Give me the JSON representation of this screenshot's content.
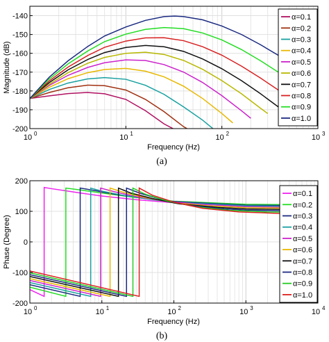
{
  "chart_data": [
    {
      "type": "line",
      "caption": "(a)",
      "xlabel": "Frequency (Hz)",
      "ylabel": "Magnitude (dB)",
      "xscale": "log",
      "xlim": [
        1,
        1000
      ],
      "ylim": [
        -200,
        -135
      ],
      "grid": true,
      "legend_position": "right",
      "x_ticks": [
        {
          "value": 1,
          "exp": "0"
        },
        {
          "value": 10,
          "exp": "1"
        },
        {
          "value": 100,
          "exp": "2"
        },
        {
          "value": 1000,
          "exp": "3"
        }
      ],
      "y_ticks": [
        -140,
        -150,
        -160,
        -170,
        -180,
        -190,
        -200
      ],
      "series": [
        {
          "name": "α=0.1",
          "color": "#b01060",
          "x": [
            1,
            1.6,
            2.5,
            4,
            6,
            10,
            16,
            25,
            40
          ],
          "y": [
            -184,
            -182.6,
            -181.4,
            -180.8,
            -181.5,
            -184.5,
            -190.5,
            -197.5,
            -206
          ]
        },
        {
          "name": "α=0.2",
          "color": "#a03010",
          "x": [
            1,
            1.6,
            2.5,
            4,
            6,
            10,
            16,
            25,
            40,
            55
          ],
          "y": [
            -184,
            -180.8,
            -178.3,
            -176.9,
            -177.2,
            -179.5,
            -184.5,
            -191,
            -199,
            -205
          ]
        },
        {
          "name": "α=0.3",
          "color": "#18a0a0",
          "x": [
            1,
            1.6,
            2.5,
            4,
            6,
            10,
            16,
            25,
            40,
            63,
            90
          ],
          "y": [
            -184,
            -179.2,
            -175.8,
            -173.6,
            -172.9,
            -173.8,
            -177,
            -181.8,
            -188.5,
            -195.5,
            -202
          ]
        },
        {
          "name": "α=0.4",
          "color": "#e8b800",
          "x": [
            1,
            1.6,
            2.5,
            4,
            6,
            10,
            16,
            25,
            40,
            63,
            100,
            130
          ],
          "y": [
            -184,
            -178,
            -173.5,
            -170.3,
            -168.6,
            -168,
            -169.5,
            -172.5,
            -177.5,
            -184,
            -192,
            -197
          ]
        },
        {
          "name": "α=0.5",
          "color": "#cc22cc",
          "x": [
            1,
            1.6,
            2.5,
            4,
            6,
            10,
            16,
            25,
            40,
            63,
            100,
            160,
            200
          ],
          "y": [
            -184,
            -177,
            -171.7,
            -167.5,
            -165,
            -163.5,
            -163.8,
            -166,
            -170,
            -175.5,
            -182.5,
            -190.5,
            -194.5
          ]
        },
        {
          "name": "α=0.6",
          "color": "#b8b800",
          "x": [
            1,
            1.6,
            2.5,
            4,
            6,
            10,
            16,
            25,
            40,
            63,
            100,
            160,
            250,
            300
          ],
          "y": [
            -184,
            -176.4,
            -170.3,
            -165.3,
            -162.2,
            -160,
            -159.4,
            -160.6,
            -163.8,
            -168.5,
            -174.5,
            -181.5,
            -189,
            -192
          ]
        },
        {
          "name": "α=0.7",
          "color": "#101010",
          "x": [
            1,
            1.6,
            2.5,
            4,
            6,
            10,
            16,
            25,
            40,
            63,
            100,
            160,
            250,
            400,
            500
          ],
          "y": [
            -184,
            -175.5,
            -168.8,
            -163.3,
            -159.6,
            -156.9,
            -155.8,
            -156.5,
            -159,
            -163,
            -168.2,
            -174.5,
            -181.3,
            -189,
            -192.5
          ]
        },
        {
          "name": "α=0.8",
          "color": "#d82020",
          "x": [
            1,
            1.6,
            2.5,
            4,
            6,
            10,
            16,
            25,
            40,
            63,
            100,
            160,
            250,
            400,
            630,
            800
          ],
          "y": [
            -184,
            -174.6,
            -167.3,
            -161.2,
            -156.8,
            -153.5,
            -151.8,
            -151.7,
            -153.3,
            -156.5,
            -161,
            -166.8,
            -173,
            -180,
            -187.5,
            -191
          ]
        },
        {
          "name": "α=0.9",
          "color": "#22dd22",
          "x": [
            1,
            1.6,
            2.5,
            4,
            6,
            10,
            16,
            25,
            40,
            63,
            100,
            160,
            250,
            400,
            630,
            1000
          ],
          "y": [
            -184,
            -173.6,
            -165.6,
            -158.8,
            -153.8,
            -149.8,
            -147.3,
            -146.3,
            -146.9,
            -149.2,
            -152.9,
            -158,
            -163.8,
            -170.5,
            -177.5,
            -185
          ]
        },
        {
          "name": "α=1.0",
          "color": "#1a2a80",
          "x": [
            1,
            1.6,
            2.5,
            4,
            6,
            10,
            16,
            25,
            32,
            40,
            63,
            100,
            160,
            250,
            400,
            630,
            1000
          ],
          "y": [
            -184,
            -172.6,
            -164,
            -156.4,
            -150.8,
            -146,
            -142.5,
            -140.5,
            -140.2,
            -140.5,
            -142.2,
            -145.5,
            -150,
            -155.3,
            -161.5,
            -168,
            -175
          ]
        }
      ]
    },
    {
      "type": "line",
      "caption": "(b)",
      "xlabel": "Frequency (Hz)",
      "ylabel": "Phase (Degree)",
      "xscale": "log",
      "xlim": [
        1,
        10000
      ],
      "ylim": [
        -200,
        200
      ],
      "grid": true,
      "legend_position": "right",
      "x_ticks": [
        {
          "value": 1,
          "exp": "0"
        },
        {
          "value": 10,
          "exp": "1"
        },
        {
          "value": 100,
          "exp": "2"
        },
        {
          "value": 1000,
          "exp": "3"
        },
        {
          "value": 10000,
          "exp": "4"
        }
      ],
      "y_ticks": [
        200,
        100,
        0,
        -100,
        -200
      ],
      "series": [
        {
          "name": "α=0.1",
          "color": "#ee22ee",
          "jump_x": 1.58,
          "start_y": -156,
          "x": [
            1,
            1.58,
            1.58,
            2,
            3,
            5,
            10,
            30,
            100,
            1000,
            10000
          ],
          "y": [
            -156,
            -178,
            178,
            174,
            168,
            160,
            150,
            138,
            128,
            122,
            120
          ]
        },
        {
          "name": "α=0.2",
          "color": "#22dd22",
          "jump_x": 3.16,
          "start_y": -148,
          "x": [
            1,
            3.16,
            3.16,
            5,
            10,
            30,
            100,
            1000,
            10000
          ],
          "y": [
            -148,
            -178,
            176,
            170,
            160,
            145,
            133,
            123,
            121
          ]
        },
        {
          "name": "α=0.3",
          "color": "#1a2a80",
          "jump_x": 5.0,
          "start_y": -140,
          "x": [
            1,
            5.0,
            5.0,
            8,
            15,
            40,
            100,
            1000,
            10000
          ],
          "y": [
            -140,
            -178,
            176,
            168,
            156,
            142,
            132,
            120,
            118
          ]
        },
        {
          "name": "α=0.4",
          "color": "#18a0a0",
          "jump_x": 7.0,
          "start_y": -133,
          "x": [
            1,
            7.0,
            7.0,
            10,
            20,
            50,
            100,
            1000,
            10000
          ],
          "y": [
            -133,
            -178,
            176,
            166,
            152,
            138,
            130,
            118,
            115
          ]
        },
        {
          "name": "α=0.5",
          "color": "#cc22cc",
          "jump_x": 9.6,
          "start_y": -126,
          "x": [
            1,
            9.6,
            9.6,
            15,
            30,
            80,
            200,
            1000,
            10000
          ],
          "y": [
            -126,
            -178,
            176,
            164,
            148,
            133,
            124,
            115,
            112
          ]
        },
        {
          "name": "α=0.6",
          "color": "#e8b800",
          "jump_x": 13,
          "start_y": -120,
          "x": [
            1,
            13,
            13,
            20,
            40,
            100,
            300,
            1000,
            10000
          ],
          "y": [
            -120,
            -178,
            176,
            162,
            145,
            128,
            118,
            112,
            109
          ]
        },
        {
          "name": "α=0.7",
          "color": "#101010",
          "jump_x": 17,
          "start_y": -113,
          "x": [
            1,
            17,
            17,
            25,
            50,
            120,
            400,
            1000,
            10000
          ],
          "y": [
            -113,
            -178,
            176,
            160,
            142,
            124,
            113,
            108,
            105
          ]
        },
        {
          "name": "α=0.8",
          "color": "#1a2a80",
          "jump_x": 22,
          "start_y": -107,
          "x": [
            1,
            22,
            22,
            35,
            70,
            160,
            500,
            1000,
            10000
          ],
          "y": [
            -107,
            -178,
            176,
            158,
            138,
            120,
            108,
            104,
            100
          ]
        },
        {
          "name": "α=0.9",
          "color": "#22cc22",
          "jump_x": 27,
          "start_y": -101,
          "x": [
            1,
            27,
            27,
            40,
            80,
            200,
            600,
            2000,
            10000
          ],
          "y": [
            -101,
            -178,
            176,
            156,
            134,
            115,
            103,
            98,
            96
          ]
        },
        {
          "name": "α=1.0",
          "color": "#dd2020",
          "jump_x": 33,
          "start_y": -95,
          "x": [
            1,
            33,
            33,
            50,
            100,
            250,
            800,
            3000,
            10000
          ],
          "y": [
            -95,
            -178,
            176,
            153,
            130,
            110,
            98,
            93,
            91
          ]
        }
      ]
    }
  ]
}
